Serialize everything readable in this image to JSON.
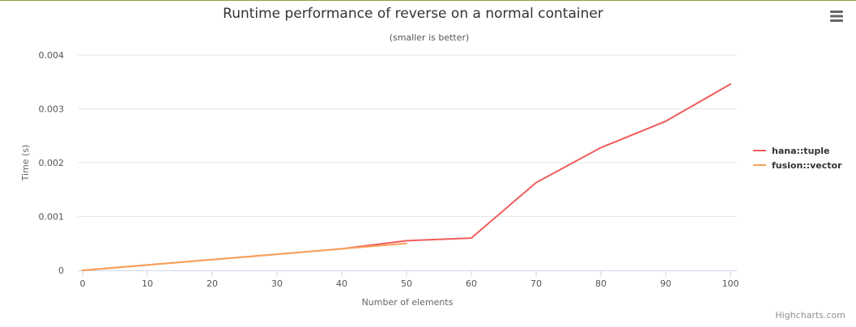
{
  "chart_data": {
    "type": "line",
    "title": "Runtime performance of reverse on a normal container",
    "subtitle": "(smaller is better)",
    "xlabel": "Number of elements",
    "ylabel": "Time (s)",
    "xlim": [
      0,
      100
    ],
    "ylim": [
      0,
      0.004
    ],
    "xticks": [
      0,
      10,
      20,
      30,
      40,
      50,
      60,
      70,
      80,
      90,
      100
    ],
    "xtick_labels": [
      "0",
      "10",
      "20",
      "30",
      "40",
      "50",
      "60",
      "70",
      "80",
      "90",
      "100"
    ],
    "yticks": [
      0,
      0.001,
      0.002,
      0.003,
      0.004
    ],
    "ytick_labels": [
      "0",
      "0.001",
      "0.002",
      "0.003",
      "0.004"
    ],
    "grid": true,
    "legend_position": "right",
    "series": [
      {
        "name": "hana::tuple",
        "color": "#f15c5c",
        "x": [
          0,
          10,
          20,
          30,
          40,
          50,
          60,
          70,
          80,
          90,
          100
        ],
        "y": [
          0.0,
          0.0001,
          0.0002,
          0.0003,
          0.0004,
          0.00055,
          0.0006,
          0.00163,
          0.00228,
          0.00277,
          0.00346
        ]
      },
      {
        "name": "fusion::vector",
        "color": "#f7a35c",
        "x": [
          0,
          10,
          20,
          30,
          40,
          50
        ],
        "y": [
          0.0,
          0.0001,
          0.0002,
          0.0003,
          0.0004,
          0.0005
        ]
      }
    ]
  },
  "credits": "Highcharts.com",
  "menu_icon": "hamburger-menu-icon"
}
